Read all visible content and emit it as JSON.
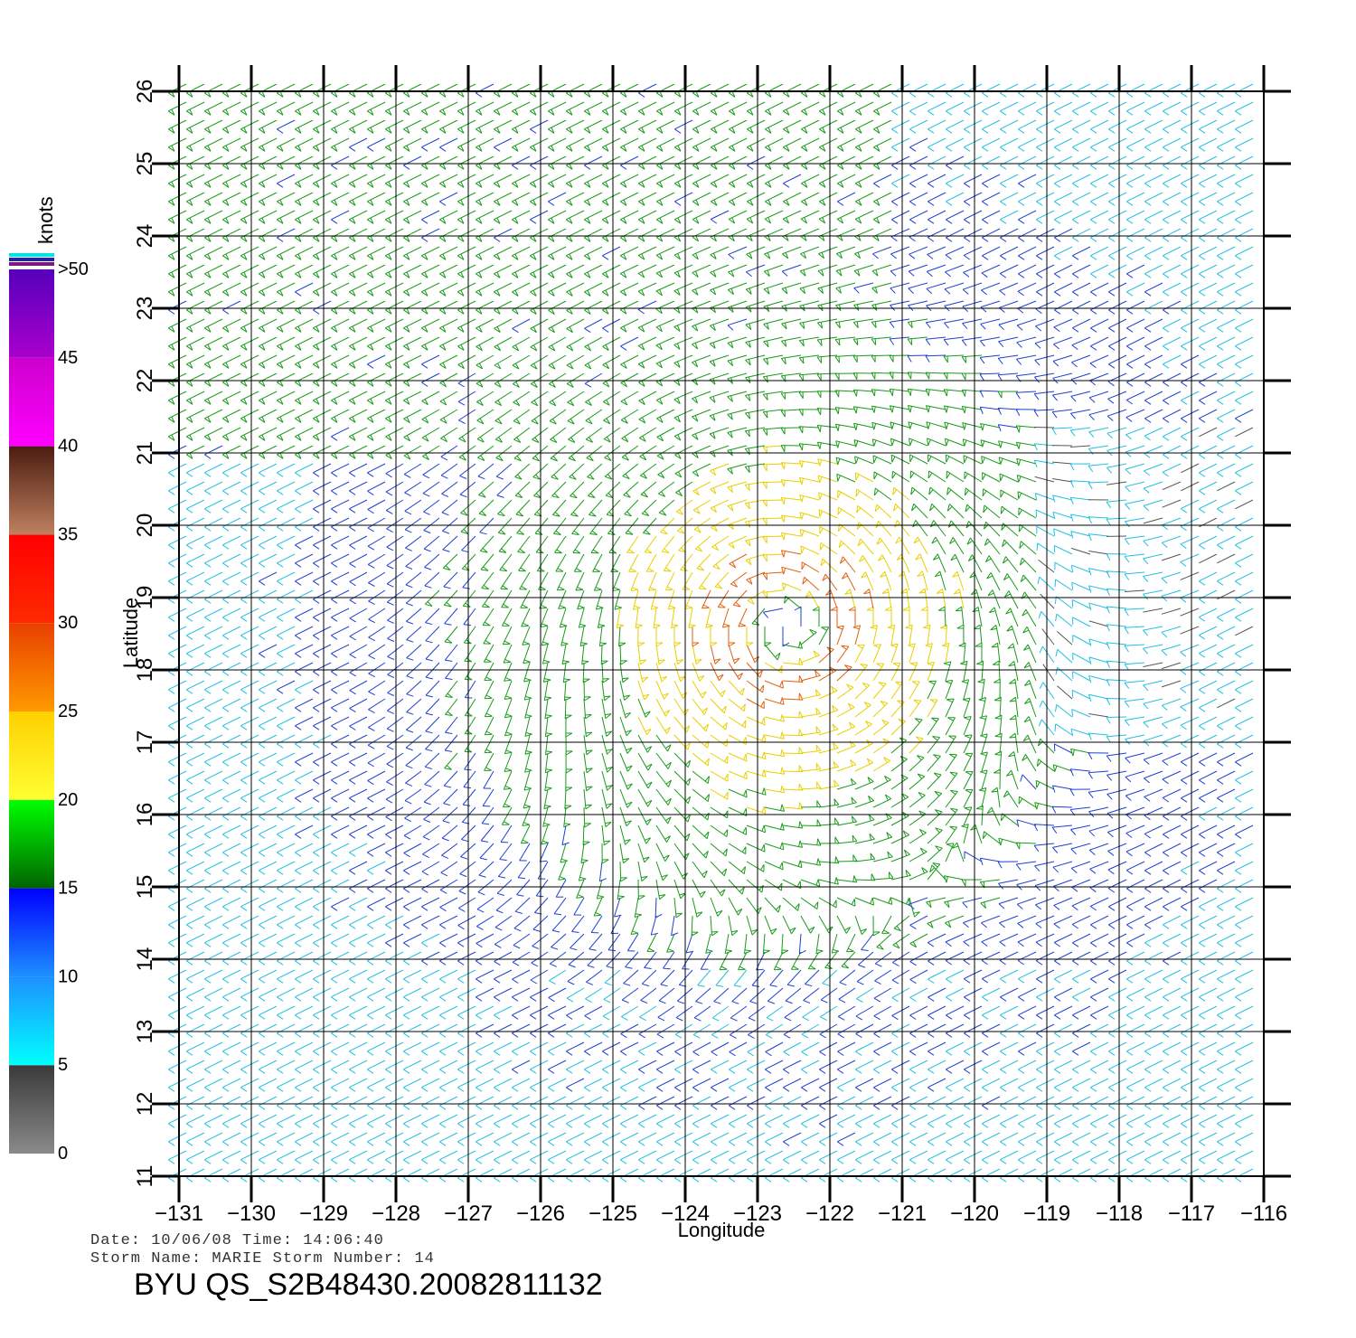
{
  "map": {
    "lon_range": [
      -131,
      -116
    ],
    "lat_range": [
      11,
      26
    ],
    "lon_ticks": [
      "−131",
      "−130",
      "−129",
      "−128",
      "−127",
      "−126",
      "−125",
      "−124",
      "−123",
      "−122",
      "−121",
      "−120",
      "−119",
      "−118",
      "−117",
      "−116"
    ],
    "lat_ticks": [
      "11",
      "12",
      "13",
      "14",
      "15",
      "16",
      "17",
      "18",
      "19",
      "20",
      "21",
      "22",
      "23",
      "24",
      "25",
      "26"
    ],
    "x_label": "Longitude",
    "y_label": "Latitude",
    "grid": true,
    "storm_center": {
      "lon": -122.6,
      "lat": 18.6
    }
  },
  "colorbar": {
    "unit": "knots",
    "labels": [
      "0",
      "5",
      "10",
      "15",
      "20",
      "25",
      "30",
      "35",
      "40",
      "45",
      ">50"
    ],
    "bands": [
      {
        "from": 0,
        "to": 5,
        "top": "#3a3a3a",
        "bottom": "#8a8a8a"
      },
      {
        "from": 5,
        "to": 10,
        "top": "#1e90ff",
        "bottom": "#00ffff"
      },
      {
        "from": 10,
        "to": 15,
        "top": "#0000ff",
        "bottom": "#1e90ff"
      },
      {
        "from": 15,
        "to": 20,
        "top": "#00ff00",
        "bottom": "#006400"
      },
      {
        "from": 20,
        "to": 25,
        "top": "#ffd000",
        "bottom": "#ffff33"
      },
      {
        "from": 25,
        "to": 30,
        "top": "#e84000",
        "bottom": "#ff9900"
      },
      {
        "from": 30,
        "to": 35,
        "top": "#ff0000",
        "bottom": "#ff2a00"
      },
      {
        "from": 35,
        "to": 40,
        "top": "#4a1c10",
        "bottom": "#c08060"
      },
      {
        "from": 40,
        "to": 45,
        "top": "#cc00cc",
        "bottom": "#ff00ff"
      },
      {
        "from": 45,
        "to": 50,
        "top": "#5500bb",
        "bottom": "#aa00cc"
      }
    ]
  },
  "info": {
    "date_line": "Date:  10/06/08   Time:  14:06:40",
    "storm_line": "Storm  Name:  MARIE    Storm  Number:  14",
    "product": "BYU  QS_S2B48430.20082811132"
  },
  "colors": {
    "calm": "#555555",
    "light": "#22c0e0",
    "moderate": "#1f3fd0",
    "fresh": "#1a9a1a",
    "strong": "#e8d000",
    "gale": "#e06010",
    "storm": "#b02010"
  }
}
